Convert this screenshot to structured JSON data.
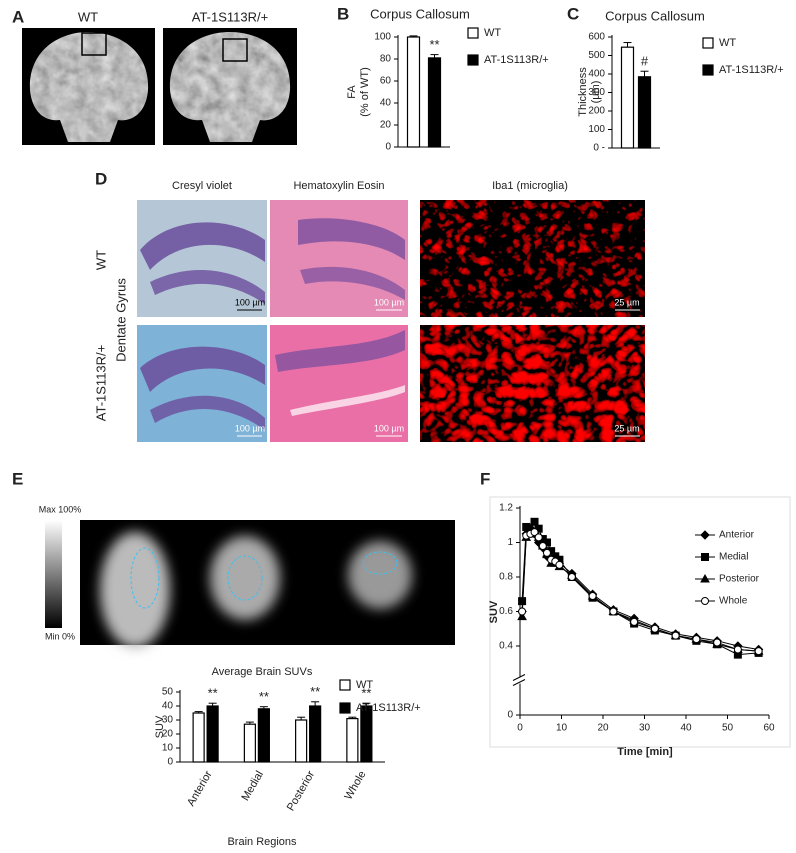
{
  "panel_A": {
    "label": "A",
    "columns": [
      "WT",
      "AT-1S113R/+"
    ]
  },
  "panel_D": {
    "label": "D",
    "columns": [
      "Cresyl violet",
      "Hematoxylin Eosin",
      "Iba1 (microglia)"
    ],
    "rows": [
      "WT",
      "AT-1S113R/+"
    ],
    "region": "Dentate Gyrus",
    "scale_bars": [
      [
        "100 µm",
        "100 µm",
        "25 µm"
      ],
      [
        "100 µm",
        "100 µm",
        "25 µm"
      ]
    ]
  },
  "panel_E": {
    "label": "E",
    "colorbar": {
      "max": "Max 100%",
      "min": "Min 0%"
    }
  },
  "chart_data": [
    {
      "type": "bar",
      "label": "B",
      "title": "Corpus Callosum",
      "ylabel": [
        "FA",
        "(% of WT)"
      ],
      "categories": [
        null
      ],
      "series": [
        {
          "name": "WT",
          "color": "#ffffff",
          "values": [
            100
          ],
          "errors": [
            1
          ]
        },
        {
          "name": "AT-1S113R/+",
          "color": "#000000",
          "values": [
            81
          ],
          "errors": [
            3
          ]
        }
      ],
      "annotations": [
        "**"
      ],
      "ylim": [
        0,
        100
      ],
      "yticks": [
        0,
        20,
        40,
        60,
        80,
        100
      ],
      "grid": false
    },
    {
      "type": "bar",
      "label": "C",
      "title": "Corpus Callosum",
      "ylabel": [
        "Thickness",
        "(μm)"
      ],
      "categories": [
        null
      ],
      "series": [
        {
          "name": "WT",
          "color": "#ffffff",
          "values": [
            545
          ],
          "errors": [
            25
          ]
        },
        {
          "name": "AT-1S113R/+",
          "color": "#000000",
          "values": [
            385
          ],
          "errors": [
            30
          ]
        }
      ],
      "annotations": [
        "#"
      ],
      "ylim": [
        0,
        600
      ],
      "yticks": [
        {
          "value": 0,
          "label": "0 -"
        },
        100,
        200,
        300,
        400,
        500,
        600
      ],
      "grid": false
    },
    {
      "type": "bar",
      "title": "Average Brain SUVs",
      "ylabel": [
        "SUV"
      ],
      "xlabel": "Brain Regions",
      "categories": [
        "Anterior",
        "Medial",
        "Posterior",
        "Whole"
      ],
      "series": [
        {
          "name": "WT",
          "color": "#ffffff",
          "values": [
            35,
            27,
            30,
            31
          ],
          "errors": [
            1,
            1.5,
            2,
            1
          ]
        },
        {
          "name": "AT-1S113R/+",
          "color": "#000000",
          "values": [
            40,
            38,
            40,
            40
          ],
          "errors": [
            2,
            1.5,
            3,
            2
          ]
        }
      ],
      "annotations": [
        "**",
        "**",
        "**",
        "**"
      ],
      "ylim": [
        0,
        50
      ],
      "yticks": [
        0,
        10,
        20,
        30,
        40,
        50
      ],
      "grid": false
    },
    {
      "type": "line",
      "label": "F",
      "ylabel": [
        "SUV"
      ],
      "xlabel": "Time [min]",
      "x": [
        0.5,
        1.5,
        2.5,
        3.5,
        4.5,
        5.5,
        6.5,
        7.5,
        8.5,
        9.5,
        12.5,
        17.5,
        22.5,
        27.5,
        32.5,
        37.5,
        42.5,
        47.5,
        52.5,
        57.5
      ],
      "series": [
        {
          "name": "Anterior",
          "color": "#000000",
          "marker": "diamond",
          "values": [
            0.6,
            1.05,
            1.08,
            1.05,
            1.0,
            0.97,
            0.92,
            0.9,
            0.9,
            0.88,
            0.82,
            0.7,
            0.61,
            0.56,
            0.51,
            0.47,
            0.45,
            0.43,
            0.4,
            0.38
          ]
        },
        {
          "name": "Medial",
          "color": "#000000",
          "marker": "square",
          "values": [
            0.66,
            1.09,
            1.07,
            1.12,
            1.08,
            1.02,
            1.0,
            0.95,
            0.92,
            0.9,
            0.8,
            0.68,
            0.6,
            0.53,
            0.49,
            0.46,
            0.43,
            0.41,
            0.35,
            0.36
          ]
        },
        {
          "name": "Posterior",
          "color": "#000000",
          "marker": "triangle",
          "values": [
            0.57,
            1.03,
            1.05,
            1.05,
            1.03,
            0.98,
            0.93,
            0.88,
            0.88,
            0.86,
            0.81,
            0.69,
            0.6,
            0.55,
            0.5,
            0.46,
            0.44,
            0.41,
            0.38,
            0.37
          ]
        },
        {
          "name": "Whole",
          "color": "#000000",
          "marker": "circle",
          "values": [
            0.6,
            1.04,
            1.05,
            1.06,
            1.03,
            0.98,
            0.94,
            0.9,
            0.89,
            0.87,
            0.8,
            0.69,
            0.6,
            0.54,
            0.5,
            0.46,
            0.44,
            0.42,
            0.38,
            0.37
          ]
        }
      ],
      "xlim": [
        0,
        60
      ],
      "xticks": [
        0,
        10,
        20,
        30,
        40,
        50,
        60
      ],
      "ylim": [
        0,
        1.2
      ],
      "yticks": [
        0,
        0.4,
        0.6,
        0.8,
        1,
        1.2
      ],
      "grid": false
    }
  ]
}
